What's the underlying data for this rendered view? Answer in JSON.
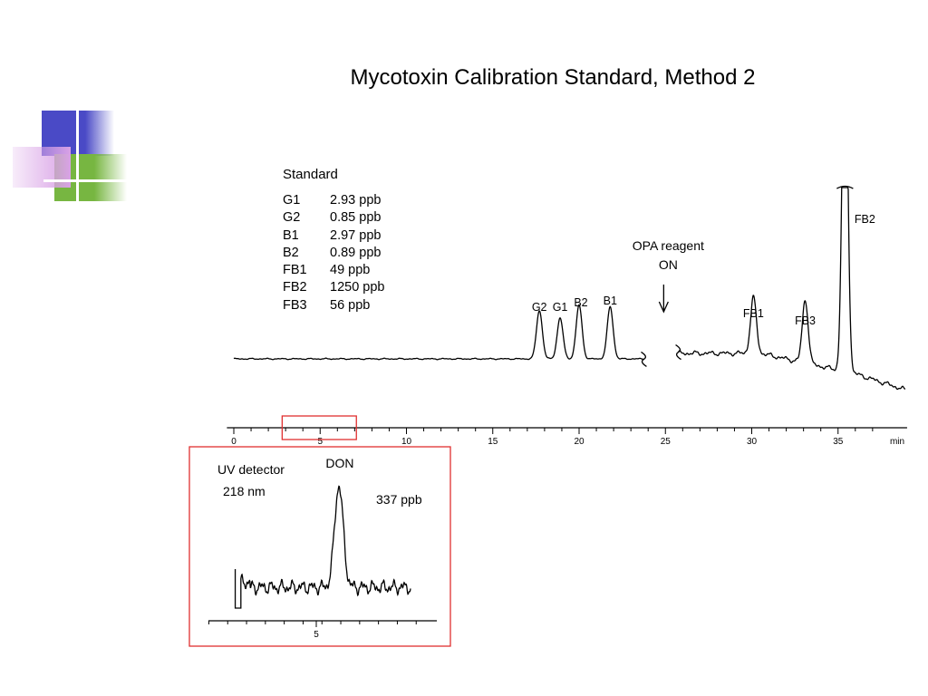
{
  "title": "Mycotoxin Calibration Standard, Method 2",
  "decoration": {
    "colors": {
      "blue": "#4a4ac6",
      "green": "#77b641",
      "violet": "#d9a2e6"
    }
  },
  "standard": {
    "heading": "Standard",
    "rows": [
      {
        "name": "G1",
        "conc": "2.93 ppb"
      },
      {
        "name": "G2",
        "conc": "0.85 ppb"
      },
      {
        "name": "B1",
        "conc": "2.97 ppb"
      },
      {
        "name": "B2",
        "conc": "0.89 ppb"
      },
      {
        "name": "FB1",
        "conc": "49 ppb"
      },
      {
        "name": "FB2",
        "conc": "1250 ppb"
      },
      {
        "name": "FB3",
        "conc": "56 ppb"
      }
    ]
  },
  "chart_data": [
    {
      "type": "line",
      "title": "",
      "xlabel": "min",
      "ylabel": "",
      "xlim": [
        0,
        39
      ],
      "xticks": [
        0,
        5,
        10,
        15,
        20,
        25,
        30,
        35
      ],
      "grid": false,
      "baseline": 0.0,
      "peaks": [
        {
          "label": "G2",
          "rt": 17.7,
          "height": 0.26
        },
        {
          "label": "G1",
          "rt": 18.9,
          "height": 0.22
        },
        {
          "label": "B2",
          "rt": 20.0,
          "height": 0.29
        },
        {
          "label": "B1",
          "rt": 21.8,
          "height": 0.28
        },
        {
          "label": "FB1",
          "rt": 30.1,
          "height": 0.3
        },
        {
          "label": "FB3",
          "rt": 33.1,
          "height": 0.34
        },
        {
          "label": "FB2",
          "rt": 35.4,
          "height": 2.0
        }
      ],
      "break_region": [
        24.0,
        25.5
      ],
      "annotation": {
        "line1": "OPA reagent",
        "line2": "ON",
        "x": 24.9
      }
    },
    {
      "type": "line",
      "title": "",
      "xlim": [
        0,
        10
      ],
      "xticks": [
        5
      ],
      "grid": false,
      "annotations": {
        "detector_line1": "UV detector",
        "detector_line2": "218 nm",
        "peak_label": "DON",
        "concentration": "337 ppb"
      },
      "peaks": [
        {
          "label": "DON",
          "x": 6.2,
          "height": 1.0
        }
      ]
    }
  ],
  "zoom_box_colors": {
    "stroke": "#e03030"
  }
}
